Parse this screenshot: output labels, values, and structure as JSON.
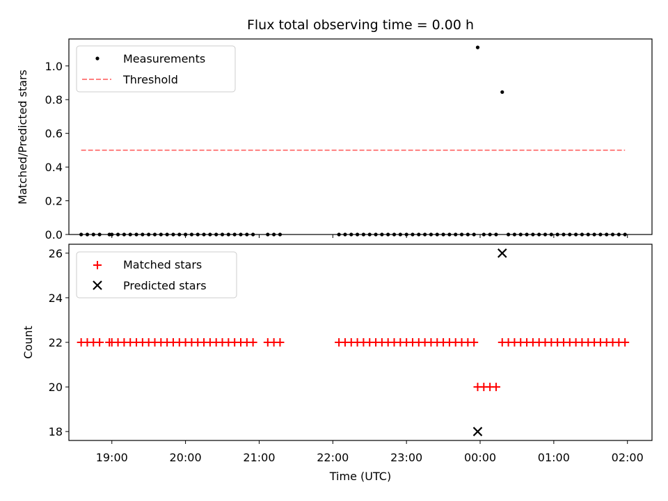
{
  "chart_data": [
    {
      "type": "scatter",
      "title": "Flux total observing time = 0.00 h",
      "xlabel": "",
      "ylabel": "Matched/Predicted stars",
      "xlim": [
        "18:25",
        "02:20"
      ],
      "ylim": [
        0,
        1.16
      ],
      "yticks": [
        0.0,
        0.2,
        0.4,
        0.6,
        0.8,
        1.0
      ],
      "ytick_labels": [
        "0.0",
        "0.2",
        "0.4",
        "0.6",
        "0.8",
        "1.0"
      ],
      "legend": {
        "placement": "upper-left",
        "entries": [
          {
            "label": "Measurements",
            "marker": "dot",
            "color": "#000000"
          },
          {
            "label": "Threshold",
            "marker": "dashed-line",
            "color": "#ff7f7f"
          }
        ]
      },
      "series": [
        {
          "name": "Measurements",
          "color": "#000000",
          "points": [
            [
              "18:35",
              0
            ],
            [
              "18:40",
              0
            ],
            [
              "18:45",
              0
            ],
            [
              "18:50",
              0
            ],
            [
              "18:58",
              0
            ],
            [
              "19:00",
              0
            ],
            [
              "19:05",
              0
            ],
            [
              "19:10",
              0
            ],
            [
              "19:15",
              0
            ],
            [
              "19:20",
              0
            ],
            [
              "19:25",
              0
            ],
            [
              "19:30",
              0
            ],
            [
              "19:35",
              0
            ],
            [
              "19:40",
              0
            ],
            [
              "19:45",
              0
            ],
            [
              "19:50",
              0
            ],
            [
              "19:55",
              0
            ],
            [
              "20:00",
              0
            ],
            [
              "20:05",
              0
            ],
            [
              "20:10",
              0
            ],
            [
              "20:15",
              0
            ],
            [
              "20:20",
              0
            ],
            [
              "20:25",
              0
            ],
            [
              "20:30",
              0
            ],
            [
              "20:35",
              0
            ],
            [
              "20:40",
              0
            ],
            [
              "20:45",
              0
            ],
            [
              "20:50",
              0
            ],
            [
              "20:55",
              0
            ],
            [
              "21:07",
              0
            ],
            [
              "21:12",
              0
            ],
            [
              "21:17",
              0
            ],
            [
              "22:05",
              0
            ],
            [
              "22:10",
              0
            ],
            [
              "22:15",
              0
            ],
            [
              "22:20",
              0
            ],
            [
              "22:25",
              0
            ],
            [
              "22:30",
              0
            ],
            [
              "22:35",
              0
            ],
            [
              "22:40",
              0
            ],
            [
              "22:45",
              0
            ],
            [
              "22:50",
              0
            ],
            [
              "22:55",
              0
            ],
            [
              "23:00",
              0
            ],
            [
              "23:05",
              0
            ],
            [
              "23:10",
              0
            ],
            [
              "23:15",
              0
            ],
            [
              "23:20",
              0
            ],
            [
              "23:25",
              0
            ],
            [
              "23:30",
              0
            ],
            [
              "23:35",
              0
            ],
            [
              "23:40",
              0
            ],
            [
              "23:45",
              0
            ],
            [
              "23:50",
              0
            ],
            [
              "23:55",
              0
            ],
            [
              "23:58",
              1.11
            ],
            [
              "00:03",
              0
            ],
            [
              "00:08",
              0
            ],
            [
              "00:13",
              0
            ],
            [
              "00:18",
              0.845
            ],
            [
              "00:23",
              0
            ],
            [
              "00:28",
              0
            ],
            [
              "00:33",
              0
            ],
            [
              "00:38",
              0
            ],
            [
              "00:43",
              0
            ],
            [
              "00:48",
              0
            ],
            [
              "00:53",
              0
            ],
            [
              "00:58",
              0
            ],
            [
              "01:03",
              0
            ],
            [
              "01:08",
              0
            ],
            [
              "01:13",
              0
            ],
            [
              "01:18",
              0
            ],
            [
              "01:23",
              0
            ],
            [
              "01:28",
              0
            ],
            [
              "01:33",
              0
            ],
            [
              "01:38",
              0
            ],
            [
              "01:43",
              0
            ],
            [
              "01:48",
              0
            ],
            [
              "01:53",
              0
            ],
            [
              "01:58",
              0
            ]
          ]
        },
        {
          "name": "Threshold",
          "color": "#ff7f7f",
          "style": "dashed",
          "points": [
            [
              "18:35",
              0.5
            ],
            [
              "01:58",
              0.5
            ]
          ]
        }
      ]
    },
    {
      "type": "scatter",
      "title": "",
      "xlabel": "Time (UTC)",
      "ylabel": "Count",
      "xlim": [
        "18:25",
        "02:20"
      ],
      "ylim": [
        17.6,
        26.4
      ],
      "yticks": [
        18,
        20,
        22,
        24,
        26
      ],
      "ytick_labels": [
        "18",
        "20",
        "22",
        "24",
        "26"
      ],
      "xticks": [
        "19:00",
        "20:00",
        "21:00",
        "22:00",
        "23:00",
        "00:00",
        "01:00",
        "02:00"
      ],
      "xtick_labels": [
        "19:00",
        "20:00",
        "21:00",
        "22:00",
        "23:00",
        "00:00",
        "01:00",
        "02:00"
      ],
      "legend": {
        "placement": "upper-left",
        "entries": [
          {
            "label": "Matched stars",
            "marker": "plus",
            "color": "#ff0000"
          },
          {
            "label": "Predicted stars",
            "marker": "x",
            "color": "#000000"
          }
        ]
      },
      "series": [
        {
          "name": "Matched stars",
          "color": "#ff0000",
          "points": [
            [
              "18:35",
              22
            ],
            [
              "18:40",
              22
            ],
            [
              "18:45",
              22
            ],
            [
              "18:50",
              22
            ],
            [
              "18:58",
              22
            ],
            [
              "19:00",
              22
            ],
            [
              "19:05",
              22
            ],
            [
              "19:10",
              22
            ],
            [
              "19:15",
              22
            ],
            [
              "19:20",
              22
            ],
            [
              "19:25",
              22
            ],
            [
              "19:30",
              22
            ],
            [
              "19:35",
              22
            ],
            [
              "19:40",
              22
            ],
            [
              "19:45",
              22
            ],
            [
              "19:50",
              22
            ],
            [
              "19:55",
              22
            ],
            [
              "20:00",
              22
            ],
            [
              "20:05",
              22
            ],
            [
              "20:10",
              22
            ],
            [
              "20:15",
              22
            ],
            [
              "20:20",
              22
            ],
            [
              "20:25",
              22
            ],
            [
              "20:30",
              22
            ],
            [
              "20:35",
              22
            ],
            [
              "20:40",
              22
            ],
            [
              "20:45",
              22
            ],
            [
              "20:50",
              22
            ],
            [
              "20:55",
              22
            ],
            [
              "21:07",
              22
            ],
            [
              "21:12",
              22
            ],
            [
              "21:17",
              22
            ],
            [
              "22:05",
              22
            ],
            [
              "22:10",
              22
            ],
            [
              "22:15",
              22
            ],
            [
              "22:20",
              22
            ],
            [
              "22:25",
              22
            ],
            [
              "22:30",
              22
            ],
            [
              "22:35",
              22
            ],
            [
              "22:40",
              22
            ],
            [
              "22:45",
              22
            ],
            [
              "22:50",
              22
            ],
            [
              "22:55",
              22
            ],
            [
              "23:00",
              22
            ],
            [
              "23:05",
              22
            ],
            [
              "23:10",
              22
            ],
            [
              "23:15",
              22
            ],
            [
              "23:20",
              22
            ],
            [
              "23:25",
              22
            ],
            [
              "23:30",
              22
            ],
            [
              "23:35",
              22
            ],
            [
              "23:40",
              22
            ],
            [
              "23:45",
              22
            ],
            [
              "23:50",
              22
            ],
            [
              "23:55",
              22
            ],
            [
              "23:58",
              20
            ],
            [
              "00:03",
              20
            ],
            [
              "00:08",
              20
            ],
            [
              "00:13",
              20
            ],
            [
              "00:18",
              22
            ],
            [
              "00:23",
              22
            ],
            [
              "00:28",
              22
            ],
            [
              "00:33",
              22
            ],
            [
              "00:38",
              22
            ],
            [
              "00:43",
              22
            ],
            [
              "00:48",
              22
            ],
            [
              "00:53",
              22
            ],
            [
              "00:58",
              22
            ],
            [
              "01:03",
              22
            ],
            [
              "01:08",
              22
            ],
            [
              "01:13",
              22
            ],
            [
              "01:18",
              22
            ],
            [
              "01:23",
              22
            ],
            [
              "01:28",
              22
            ],
            [
              "01:33",
              22
            ],
            [
              "01:38",
              22
            ],
            [
              "01:43",
              22
            ],
            [
              "01:48",
              22
            ],
            [
              "01:53",
              22
            ],
            [
              "01:58",
              22
            ]
          ]
        },
        {
          "name": "Predicted stars",
          "color": "#000000",
          "points": [
            [
              "23:58",
              18
            ],
            [
              "00:18",
              26
            ]
          ]
        }
      ]
    }
  ]
}
